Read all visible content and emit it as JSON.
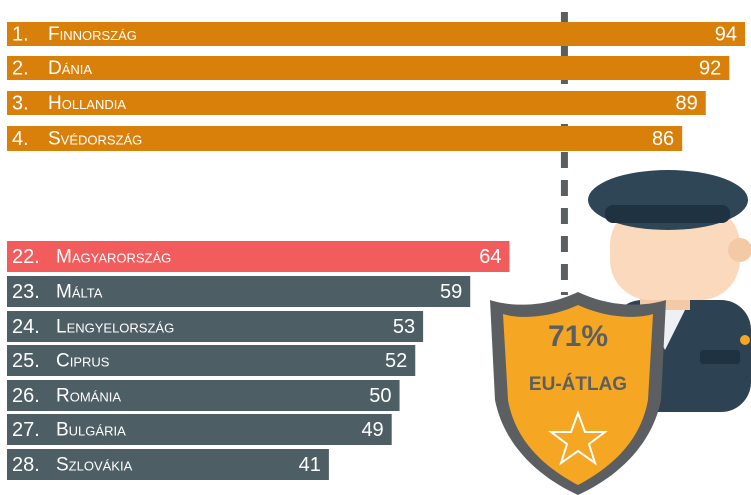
{
  "chart_data": {
    "type": "bar",
    "ranks": [
      "1.",
      "2.",
      "3.",
      "4.",
      "22.",
      "23.",
      "24.",
      "25.",
      "26.",
      "27.",
      "28."
    ],
    "categories": [
      "Finnország",
      "Dánia",
      "Hollandia",
      "Svédország",
      "Magyarország",
      "Málta",
      "Lengyelország",
      "Ciprus",
      "Románia",
      "Bulgária",
      "Szlovákia"
    ],
    "values": [
      94,
      92,
      89,
      86,
      64,
      59,
      53,
      52,
      50,
      49,
      41
    ],
    "colors": [
      "#d9800b",
      "#d9800b",
      "#d9800b",
      "#d9800b",
      "#f25c5c",
      "#4e5e65",
      "#4e5e65",
      "#4e5e65",
      "#4e5e65",
      "#4e5e65",
      "#4e5e65"
    ],
    "average": {
      "value": 71,
      "label": "71%"
    },
    "average_label": "EU-ÁTLAG",
    "xlim": [
      0,
      94
    ]
  }
}
